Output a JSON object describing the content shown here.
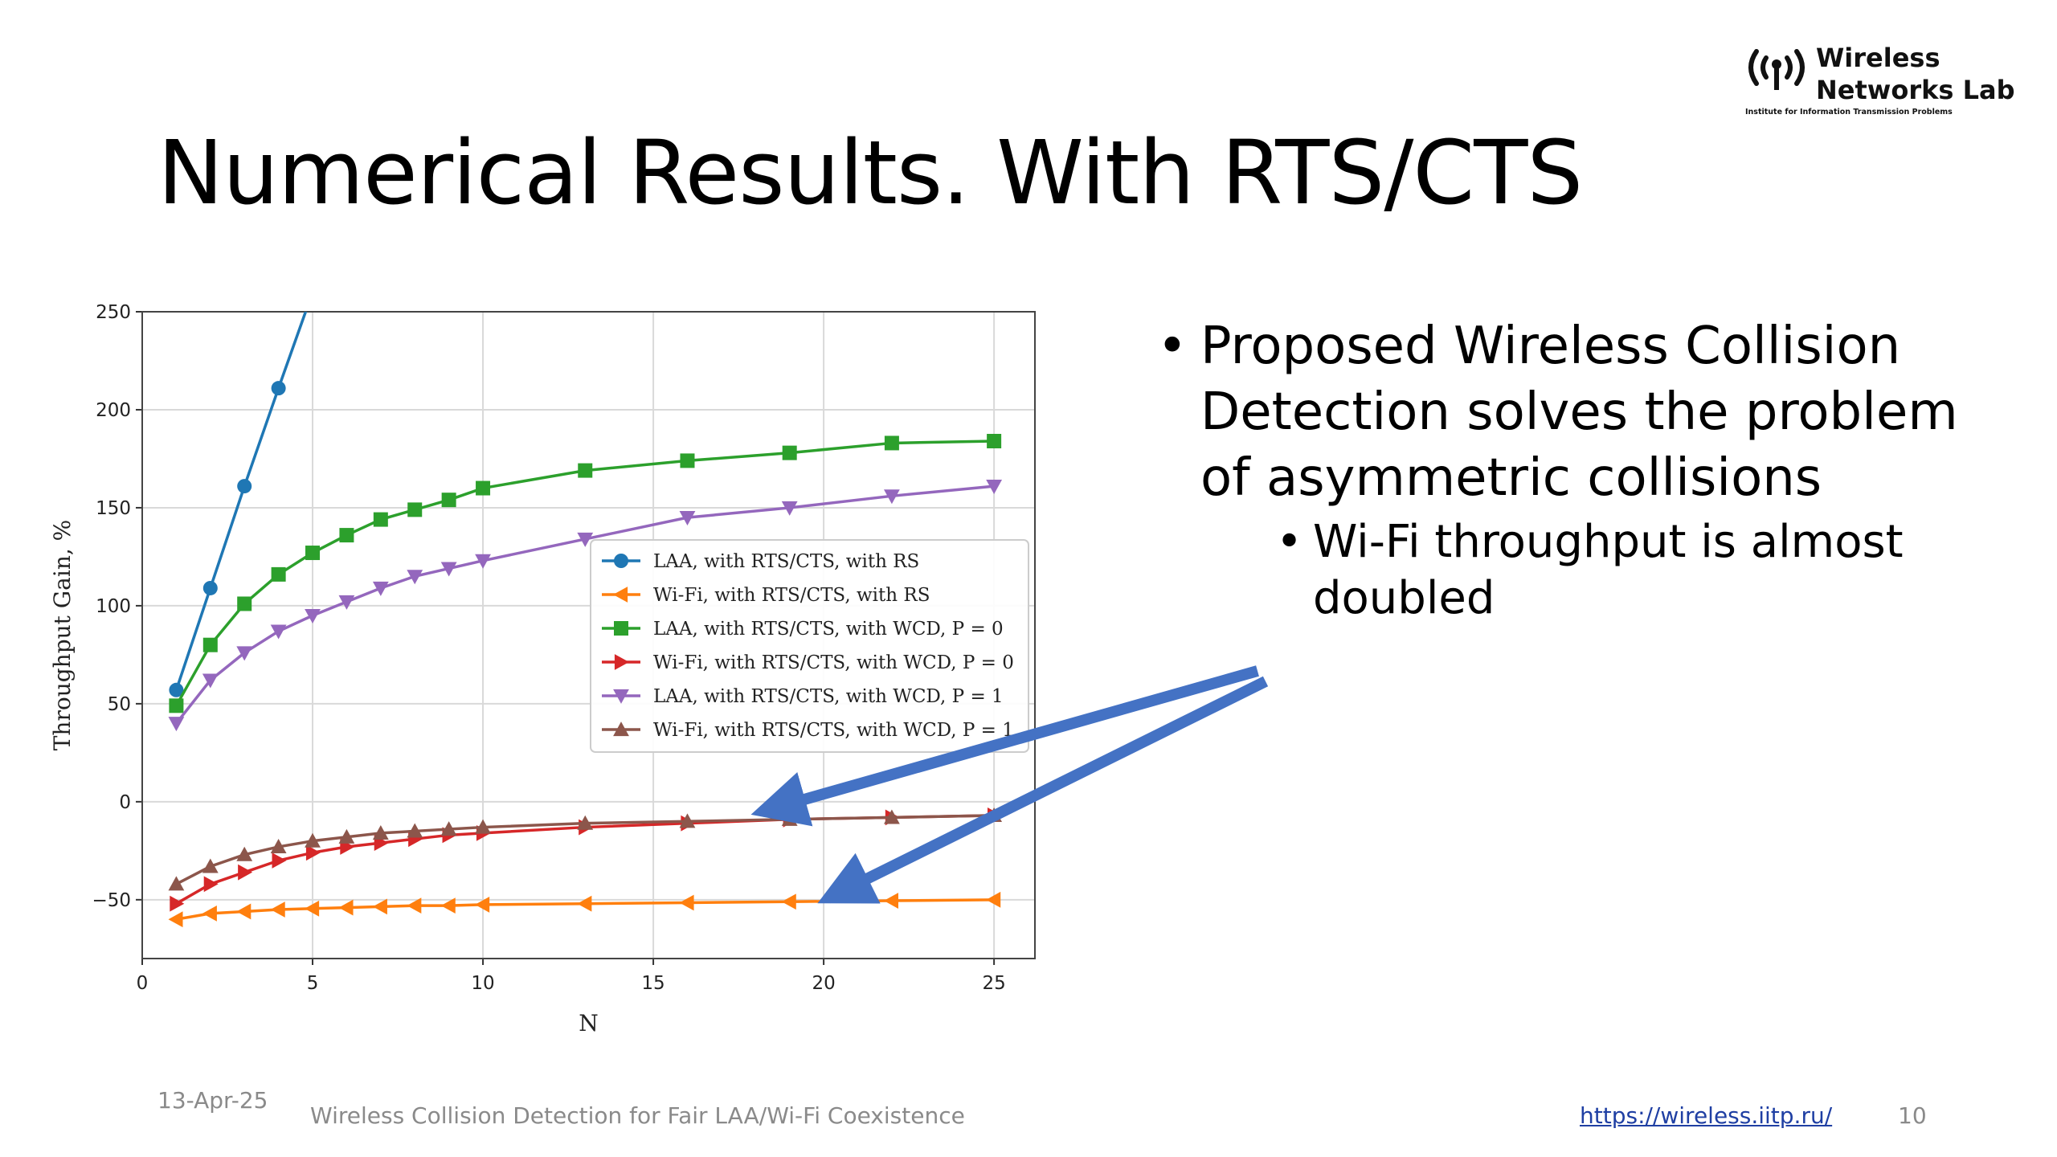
{
  "slide": {
    "title": "Numerical Results. With RTS/CTS",
    "logo": {
      "line1": "Wireless",
      "line2": "Networks Lab",
      "subtitle": "Institute for Information Transmission Problems",
      "icon": "antenna-broadcast-icon"
    },
    "bullets": [
      {
        "level": 1,
        "text": "Proposed Wireless Collision Detection solves the problem of asymmetric collisions"
      },
      {
        "level": 2,
        "text": "Wi-Fi throughput is almost doubled"
      }
    ],
    "bullet_glyph": "•",
    "footer": {
      "date": "13-Apr-25",
      "center": "Wireless Collision Detection for Fair LAA/Wi-Fi Coexistence",
      "link": "https://wireless.iitp.ru/",
      "page": "10"
    },
    "arrow_color": "#4472c4"
  },
  "chart_data": {
    "type": "line",
    "title": "",
    "xlabel": "N",
    "ylabel": "Throughput Gain, %",
    "xlim": [
      0,
      26.2
    ],
    "ylim": [
      -80,
      250
    ],
    "xticks": [
      0,
      5,
      10,
      15,
      20,
      25
    ],
    "yticks": [
      -50,
      0,
      50,
      100,
      150,
      200,
      250
    ],
    "grid": true,
    "legend_position": "center-right",
    "series": [
      {
        "name": "LAA, with RTS/CTS, with RS",
        "color": "#1f77b4",
        "marker": "circle",
        "x": [
          1,
          2,
          3,
          4,
          5
        ],
        "y": [
          57,
          109,
          161,
          211,
          260
        ]
      },
      {
        "name": "Wi-Fi, with RTS/CTS, with RS",
        "color": "#ff7f0e",
        "marker": "triangle-left",
        "x": [
          1,
          2,
          3,
          4,
          5,
          6,
          7,
          8,
          9,
          10,
          13,
          16,
          19,
          22,
          25
        ],
        "y": [
          -60,
          -57,
          -56,
          -55,
          -54.5,
          -54,
          -53.5,
          -53,
          -53,
          -52.5,
          -52,
          -51.5,
          -51,
          -50.5,
          -50
        ]
      },
      {
        "name": "LAA, with RTS/CTS, with WCD, P = 0",
        "color": "#2ca02c",
        "marker": "square",
        "x": [
          1,
          2,
          3,
          4,
          5,
          6,
          7,
          8,
          9,
          10,
          13,
          16,
          19,
          22,
          25
        ],
        "y": [
          49,
          80,
          101,
          116,
          127,
          136,
          144,
          149,
          154,
          160,
          169,
          174,
          178,
          183,
          184
        ]
      },
      {
        "name": "Wi-Fi, with RTS/CTS, with WCD, P = 0",
        "color": "#d62728",
        "marker": "triangle-right",
        "x": [
          1,
          2,
          3,
          4,
          5,
          6,
          7,
          8,
          9,
          10,
          13,
          16,
          19,
          22,
          25
        ],
        "y": [
          -52,
          -42,
          -36,
          -30,
          -26,
          -23,
          -21,
          -19,
          -17,
          -16,
          -13,
          -11,
          -9,
          -8,
          -7
        ]
      },
      {
        "name": "LAA, with RTS/CTS, with WCD, P = 1",
        "color": "#9467bd",
        "marker": "triangle-down",
        "x": [
          1,
          2,
          3,
          4,
          5,
          6,
          7,
          8,
          9,
          10,
          13,
          16,
          19,
          22,
          25
        ],
        "y": [
          40,
          62,
          76,
          87,
          95,
          102,
          109,
          115,
          119,
          123,
          134,
          145,
          150,
          156,
          161
        ]
      },
      {
        "name": "Wi-Fi, with RTS/CTS, with WCD, P = 1",
        "color": "#8c564b",
        "marker": "triangle-up",
        "x": [
          1,
          2,
          3,
          4,
          5,
          6,
          7,
          8,
          9,
          10,
          13,
          16,
          19,
          22,
          25
        ],
        "y": [
          -42,
          -33,
          -27,
          -23,
          -20,
          -18,
          -16,
          -15,
          -14,
          -13,
          -11,
          -10,
          -9,
          -8,
          -7
        ]
      }
    ]
  }
}
